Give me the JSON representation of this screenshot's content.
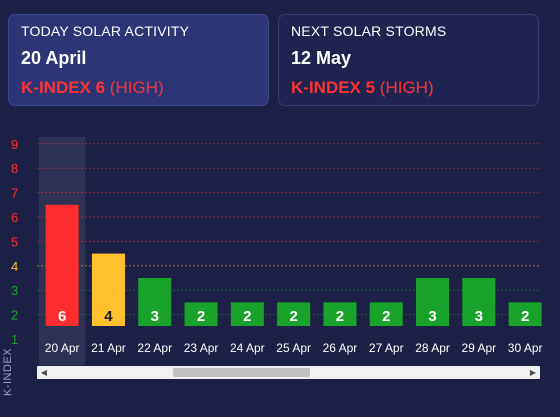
{
  "today": {
    "label": "TODAY SOLAR ACTIVITY",
    "date": "20 April",
    "k_bold": "K-INDEX 6",
    "k_level": " (HIGH)"
  },
  "next": {
    "label": "NEXT SOLAR STORMS",
    "date": "12 May",
    "k_bold": "K-INDEX 5",
    "k_level": " (HIGH)"
  },
  "colors": {
    "red": "#ff2d2d",
    "yellow": "#ffc12e",
    "green": "#1aa32a",
    "background": "#1c2045"
  },
  "chart_data": {
    "type": "bar",
    "ylabel": "K-INDEX",
    "ylim": [
      1,
      9
    ],
    "y_ticks": [
      "1",
      "2",
      "3",
      "4",
      "5",
      "6",
      "7",
      "8",
      "9"
    ],
    "highlighted_category": "20 Apr",
    "categories": [
      "20 Apr",
      "21 Apr",
      "22 Apr",
      "23 Apr",
      "24 Apr",
      "25 Apr",
      "26 Apr",
      "27 Apr",
      "28 Apr",
      "29 Apr",
      "30 Apr"
    ],
    "values": [
      6,
      4,
      3,
      2,
      2,
      2,
      2,
      2,
      3,
      3,
      2
    ]
  },
  "scroll": {
    "left_arrow": "◀",
    "right_arrow": "▶"
  }
}
